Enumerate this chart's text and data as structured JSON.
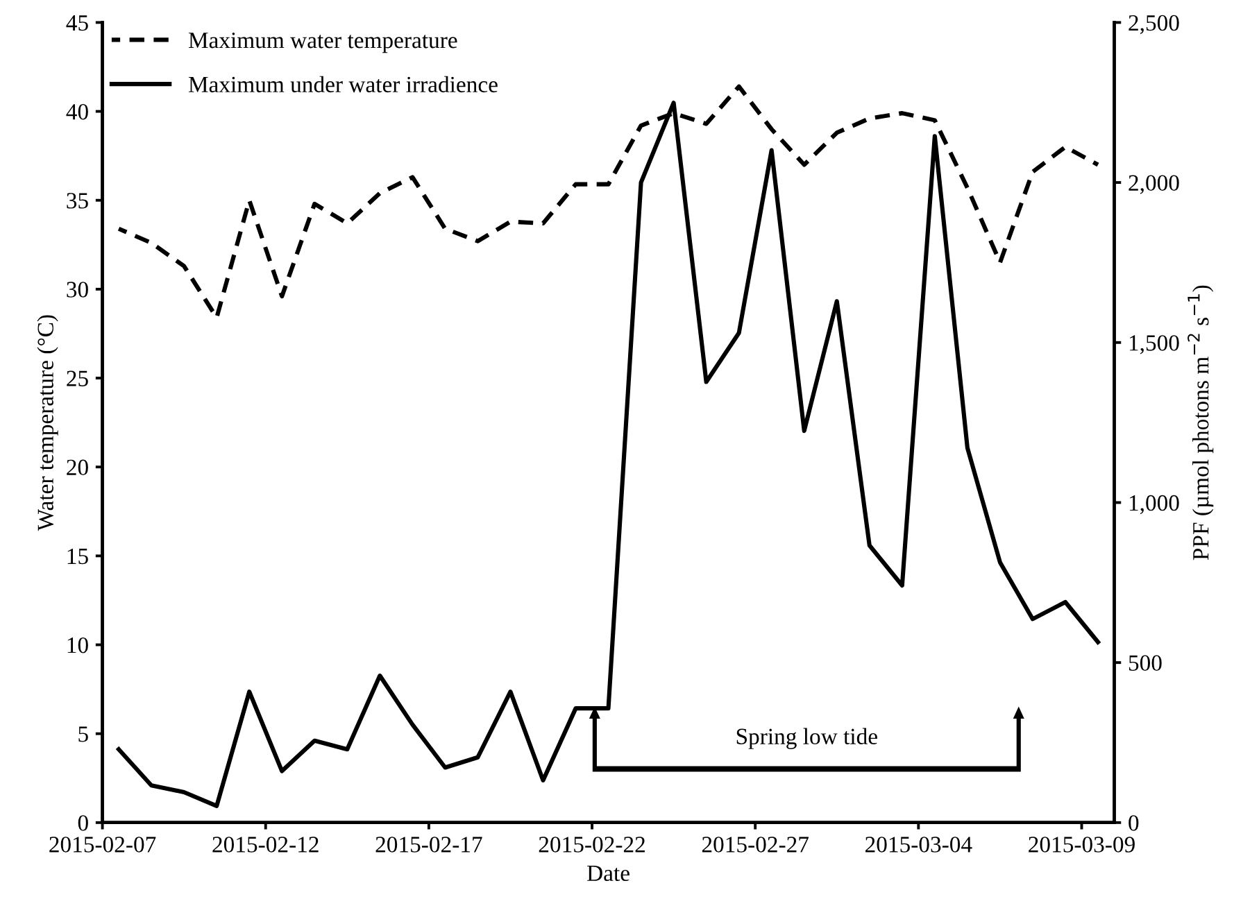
{
  "chart_data": {
    "type": "line",
    "xlabel": "Date",
    "ylabel": "Water temperature (°C)",
    "y2label": "PPF (µmol photons m$^{−2}$ s$^{−1}$)",
    "x": [
      "2015-02-07T12:00",
      "2015-02-08T12:00",
      "2015-02-09T12:00",
      "2015-02-10T12:00",
      "2015-02-11T12:00",
      "2015-02-12T12:00",
      "2015-02-13T12:00",
      "2015-02-14T12:00",
      "2015-02-15T12:00",
      "2015-02-16T12:00",
      "2015-02-17T12:00",
      "2015-02-18T12:00",
      "2015-02-19T12:00",
      "2015-02-20T12:00",
      "2015-02-21T12:00",
      "2015-02-22T12:00",
      "2015-02-23T12:00",
      "2015-02-24T12:00",
      "2015-02-25T12:00",
      "2015-02-26T12:00",
      "2015-02-27T12:00",
      "2015-02-28T12:00",
      "2015-03-01T12:00",
      "2015-03-02T12:00",
      "2015-03-03T12:00",
      "2015-03-04T12:00",
      "2015-03-05T12:00",
      "2015-03-06T12:00",
      "2015-03-07T12:00",
      "2015-03-08T12:00",
      "2015-03-09T12:00"
    ],
    "series": [
      {
        "name": "Maximum water temperature",
        "color": "#000000",
        "line_style": "dashed",
        "values": [
          33.4,
          32.6,
          31.3,
          28.4,
          35.0,
          29.6,
          34.8,
          33.7,
          35.4,
          36.3,
          33.4,
          32.7,
          33.8,
          33.7,
          35.9,
          35.9,
          39.2,
          39.9,
          39.3,
          41.4,
          39.0,
          37.0,
          38.8,
          39.6,
          39.9,
          39.5,
          35.7,
          31.5,
          36.6,
          38.0,
          37.0
        ]
      },
      {
        "name": "Maximum under water irradience",
        "color": "#000000",
        "line_style": "solid",
        "axis": "y2",
        "values": [
          229,
          116,
          95,
          52,
          409,
          161,
          256,
          229,
          459,
          306,
          172,
          204,
          409,
          132,
          357,
          357,
          2000,
          2249,
          1377,
          1530,
          2101,
          1224,
          1629,
          866,
          741,
          2145,
          1171,
          813,
          636,
          689,
          564
        ]
      }
    ],
    "xlim": [
      "2015-02-07",
      "2015-03-10"
    ],
    "xticks": [
      "2015-02-07",
      "2015-02-12",
      "2015-02-17",
      "2015-02-22",
      "2015-02-27",
      "2015-03-04",
      "2015-03-09"
    ],
    "ylim": [
      0,
      45
    ],
    "yticks": [
      0,
      5,
      10,
      15,
      20,
      25,
      30,
      35,
      40,
      45
    ],
    "y2lim": [
      0,
      2500
    ],
    "y2ticks": [
      0,
      {
        "value": 500,
        "label": "500"
      },
      {
        "value": 1000,
        "label": "1,000"
      },
      {
        "value": 1500,
        "label": "1,500"
      },
      {
        "value": 2000,
        "label": "2,000"
      },
      {
        "value": 2500,
        "label": "2,500"
      }
    ],
    "annotations": [
      "Spring low tide"
    ],
    "legend": "top left",
    "grid": false,
    "marker": "none"
  }
}
